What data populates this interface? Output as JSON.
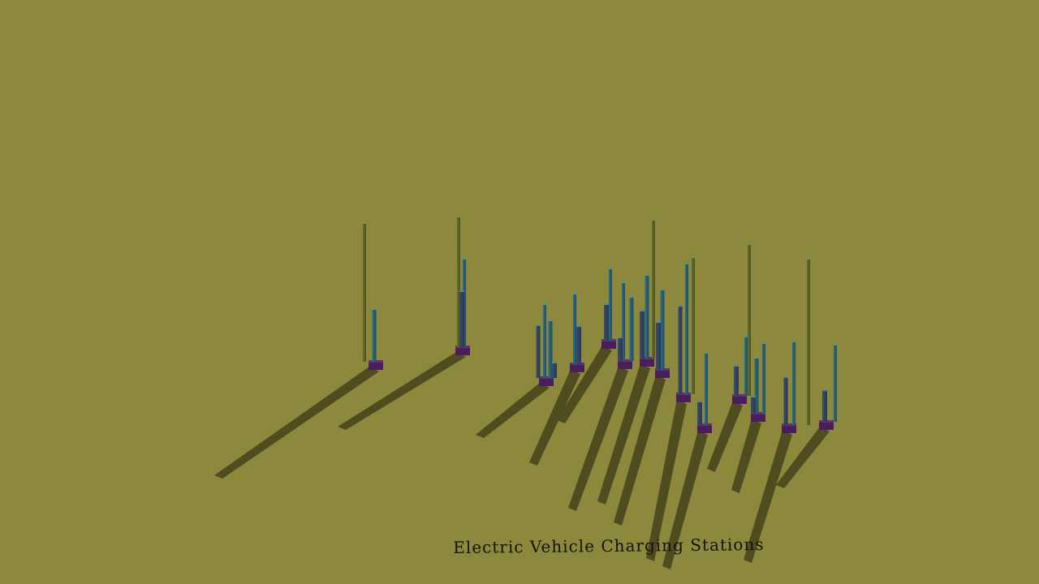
{
  "scene": {
    "title": "Electric Vehicle Charging Stations",
    "background_color": "#8c893c",
    "shadow_color": "#3a3717",
    "base_color": "#4a1e5a",
    "bar_colors": [
      "#3b4f6a",
      "#2f5f78",
      "#2a7c8c",
      "#5a6a2a"
    ]
  }
}
